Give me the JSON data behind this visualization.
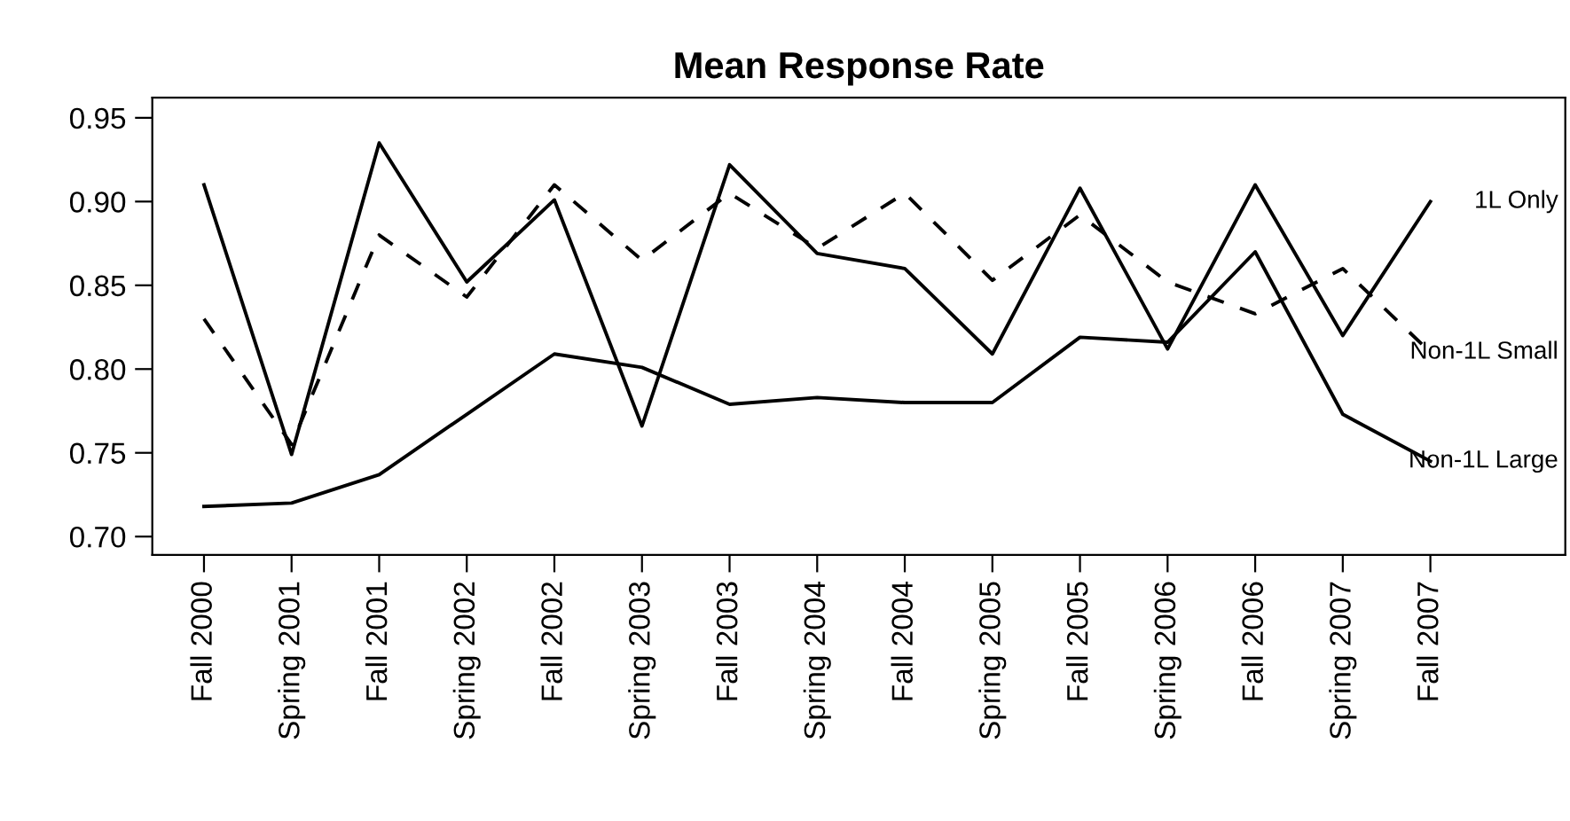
{
  "chart_data": {
    "type": "line",
    "title": "Mean Response Rate",
    "categories": [
      "Fall 2000",
      "Spring 2001",
      "Fall 2001",
      "Spring 2002",
      "Fall 2002",
      "Spring 2003",
      "Fall 2003",
      "Spring 2004",
      "Fall 2004",
      "Spring 2005",
      "Fall 2005",
      "Spring 2006",
      "Fall 2006",
      "Spring 2007",
      "Fall 2007"
    ],
    "series": [
      {
        "name": "1L Only",
        "color": "#000000",
        "line_style": "solid",
        "values": [
          0.91,
          0.749,
          0.935,
          0.852,
          0.901,
          0.766,
          0.922,
          0.869,
          0.86,
          0.809,
          0.908,
          0.812,
          0.91,
          0.82,
          0.9
        ]
      },
      {
        "name": "Non-1L Small",
        "color": "#000000",
        "line_style": "dashed",
        "values": [
          0.83,
          0.755,
          0.88,
          0.843,
          0.91,
          0.865,
          0.905,
          0.872,
          0.905,
          0.853,
          0.892,
          0.852,
          0.833,
          0.86,
          0.81
        ]
      },
      {
        "name": "Non-1L Large",
        "color": "#000000",
        "line_style": "solid",
        "values": [
          0.718,
          0.72,
          0.737,
          0.773,
          0.809,
          0.801,
          0.779,
          0.783,
          0.78,
          0.78,
          0.819,
          0.816,
          0.87,
          0.773,
          0.745
        ]
      }
    ],
    "ylim": [
      0.689,
      0.962
    ],
    "yticks": [
      {
        "value": 0.7,
        "label": "0.70"
      },
      {
        "value": 0.75,
        "label": "0.75"
      },
      {
        "value": 0.8,
        "label": "0.80"
      },
      {
        "value": 0.85,
        "label": "0.85"
      },
      {
        "value": 0.9,
        "label": "0.90"
      },
      {
        "value": 0.95,
        "label": "0.95"
      }
    ],
    "grid": false,
    "legend": false,
    "marker": "none"
  }
}
